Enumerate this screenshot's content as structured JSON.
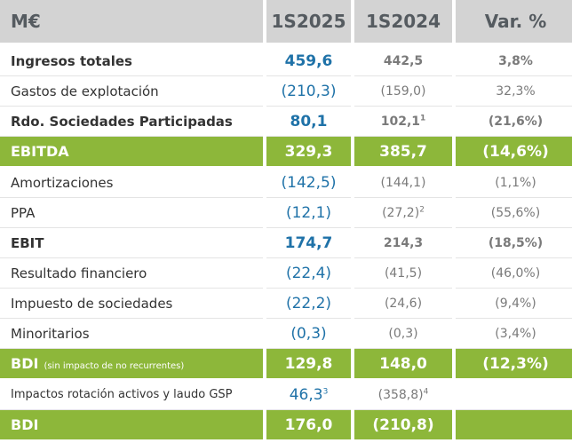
{
  "header": {
    "label": "M€",
    "col1": "1S2025",
    "col2": "1S2024",
    "col3": "Var. %"
  },
  "rows": [
    {
      "label": "Ingresos totales",
      "cur": "459,6",
      "prev": "442,5",
      "var": "3,8%"
    },
    {
      "label": "Gastos de explotación",
      "cur": "(210,3)",
      "prev": "(159,0)",
      "var": "32,3%"
    },
    {
      "label": "Rdo. Sociedades Participadas",
      "cur": "80,1",
      "prev": "102,1",
      "prev_note": "1",
      "var": "(21,6%)"
    },
    {
      "label": "EBITDA",
      "cur": "329,3",
      "prev": "385,7",
      "var": "(14,6%)"
    },
    {
      "label": "Amortizaciones",
      "cur": "(142,5)",
      "prev": "(144,1)",
      "var": "(1,1%)"
    },
    {
      "label": "PPA",
      "cur": "(12,1)",
      "prev": "(27,2)",
      "prev_note": "2",
      "var": "(55,6%)"
    },
    {
      "label": "EBIT",
      "cur": "174,7",
      "prev": "214,3",
      "var": "(18,5%)"
    },
    {
      "label": "Resultado financiero",
      "cur": "(22,4)",
      "prev": "(41,5)",
      "var": "(46,0%)"
    },
    {
      "label": "Impuesto de sociedades",
      "cur": "(22,2)",
      "prev": "(24,6)",
      "var": "(9,4%)"
    },
    {
      "label": "Minoritarios",
      "cur": "(0,3)",
      "prev": "(0,3)",
      "var": "(3,4%)"
    },
    {
      "label": "BDI",
      "sublabel": "(sin impacto de no recurrentes)",
      "cur": "129,8",
      "prev": "148,0",
      "var": "(12,3%)"
    },
    {
      "label": "Impactos rotación activos y laudo GSP",
      "cur": "46,3",
      "cur_note": "3",
      "prev": "(358,8)",
      "prev_note": "4",
      "var": ""
    },
    {
      "label": "BDI",
      "cur": "176,0",
      "prev": "(210,8)",
      "var": ""
    }
  ],
  "colors": {
    "header_bg": "#d3d3d3",
    "highlight_green": "#8db73a",
    "current_blue": "#1f72a8"
  }
}
